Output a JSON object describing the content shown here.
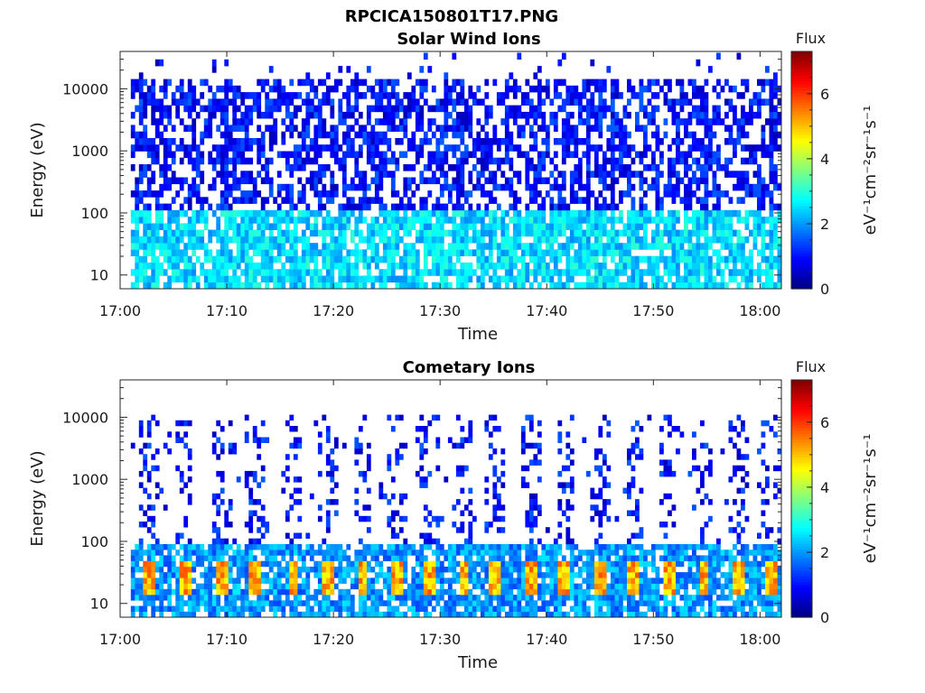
{
  "figure": {
    "title": "RPCICA150801T17.PNG"
  },
  "chart_data": [
    {
      "type": "heatmap",
      "title": "Solar Wind Ions",
      "xlabel": "Time",
      "ylabel": "Energy (eV)",
      "x_ticks": [
        "17:00",
        "17:10",
        "17:20",
        "17:30",
        "17:40",
        "17:50",
        "18:00"
      ],
      "x_range": [
        "17:00",
        "18:02"
      ],
      "y_scale": "log",
      "y_ticks": [
        "10",
        "100",
        "1000",
        "10000"
      ],
      "y_range": [
        6,
        40000
      ],
      "colorbar": {
        "label": "Flux",
        "units": "eV⁻¹cm⁻²sr⁻¹s⁻¹",
        "ticks": [
          "0",
          "2",
          "4",
          "6"
        ],
        "range": [
          0,
          7.3
        ]
      },
      "data_start": "17:01",
      "data_end": "18:02",
      "energy_top": 16000,
      "sparse_top": 38000,
      "typical_flux": {
        "high_energy": 1.0,
        "low_energy": 2.5
      },
      "bursts": [],
      "vertical_streaks": [
        "17:10",
        "17:32",
        "17:44",
        "17:46",
        "17:55",
        "18:01"
      ]
    },
    {
      "type": "heatmap",
      "title": "Cometary Ions",
      "xlabel": "Time",
      "ylabel": "Energy (eV)",
      "x_ticks": [
        "17:00",
        "17:10",
        "17:20",
        "17:30",
        "17:40",
        "17:50",
        "18:00"
      ],
      "x_range": [
        "17:00",
        "18:02"
      ],
      "y_scale": "log",
      "y_ticks": [
        "10",
        "100",
        "1000",
        "10000"
      ],
      "y_range": [
        6,
        40000
      ],
      "colorbar": {
        "label": "Flux",
        "units": "eV⁻¹cm⁻²sr⁻¹s⁻¹",
        "ticks": [
          "0",
          "2",
          "4",
          "6"
        ],
        "range": [
          0,
          7.3
        ]
      },
      "data_start": "17:01",
      "data_end": "18:02",
      "energy_top": 11000,
      "sparse_top": 11000,
      "typical_flux": {
        "high_energy": 1.0,
        "low_energy": 2.0
      },
      "bursts": [
        "17:02:45",
        "17:06:00",
        "17:09:30",
        "17:12:45",
        "17:16:15",
        "17:19:30",
        "17:22:45",
        "17:26:00",
        "17:29:00",
        "17:32:15",
        "17:35:15",
        "17:38:30",
        "17:41:45",
        "17:45:00",
        "17:48:15",
        "17:51:30",
        "17:54:45",
        "17:58:00",
        "18:01:00"
      ],
      "burst_energy_range": [
        13,
        45
      ],
      "burst_peak_flux": 5.8,
      "vertical_streaks": []
    }
  ]
}
